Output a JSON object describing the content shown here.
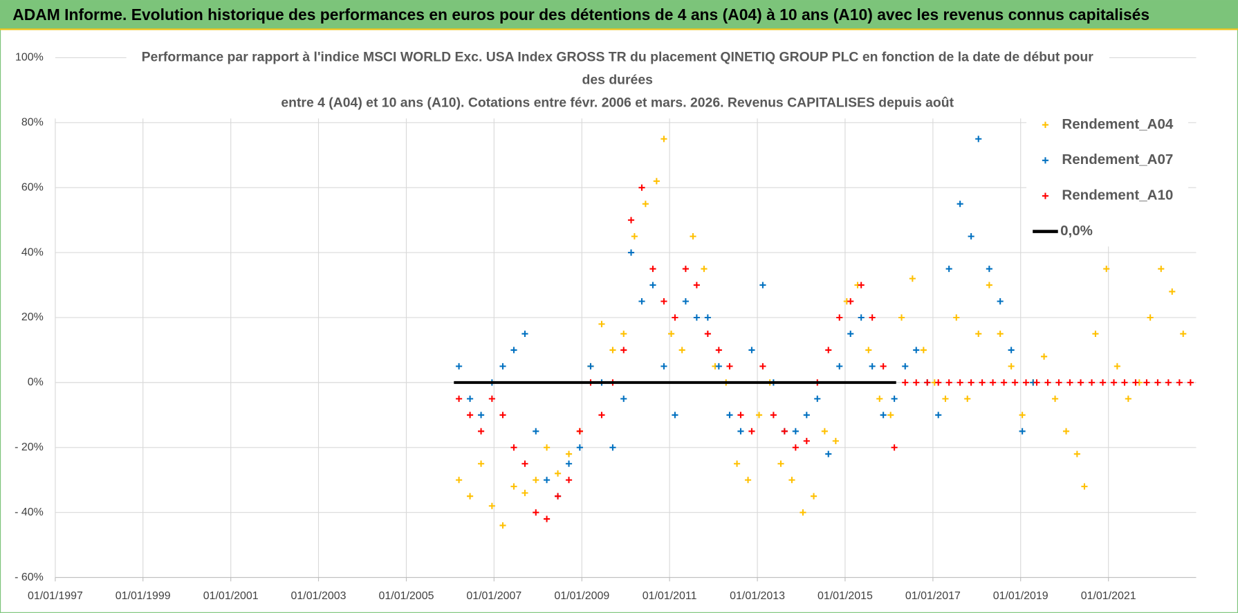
{
  "chart_data": {
    "type": "scatter",
    "title": "ADAM Informe. Evolution historique des performances en euros pour des détentions de 4 ans (A04) à 10 ans (A10) avec les revenus connus capitalisés",
    "subtitle": [
      "Performance par rapport à l'indice MSCI WORLD Exc. USA Index GROSS TR  du placement QINETIQ GROUP PLC en fonction de la date de début pour",
      "des durées",
      "entre 4 (A04) et 10 ans (A10). Cotations entre févr. 2006 et mars. 2026. Revenus CAPITALISES depuis août"
    ],
    "xlim": [
      "1997-01-01",
      "2023-01-01"
    ],
    "xticks": [
      {
        "value": "1997-01-01",
        "label": "01/01/1997"
      },
      {
        "value": "1999-01-01",
        "label": "01/01/1999"
      },
      {
        "value": "2001-01-01",
        "label": "01/01/2001"
      },
      {
        "value": "2003-01-01",
        "label": "01/01/2003"
      },
      {
        "value": "2005-01-01",
        "label": "01/01/2005"
      },
      {
        "value": "2007-01-01",
        "label": "01/01/2007"
      },
      {
        "value": "2009-01-01",
        "label": "01/01/2009"
      },
      {
        "value": "2011-01-01",
        "label": "01/01/2011"
      },
      {
        "value": "2013-01-01",
        "label": "01/01/2013"
      },
      {
        "value": "2015-01-01",
        "label": "01/01/2015"
      },
      {
        "value": "2017-01-01",
        "label": "01/01/2017"
      },
      {
        "value": "2019-01-01",
        "label": "01/01/2019"
      },
      {
        "value": "2021-01-01",
        "label": "01/01/2021"
      }
    ],
    "ylim": [
      -60,
      100
    ],
    "yticks": [
      {
        "value": -60,
        "label": "- 60%"
      },
      {
        "value": -40,
        "label": "- 40%"
      },
      {
        "value": -20,
        "label": "- 20%"
      },
      {
        "value": 0,
        "label": "0%"
      },
      {
        "value": 20,
        "label": "20%"
      },
      {
        "value": 40,
        "label": "40%"
      },
      {
        "value": 60,
        "label": "60%"
      },
      {
        "value": 80,
        "label": "80%"
      },
      {
        "value": 100,
        "label": "100%"
      }
    ],
    "grid": true,
    "legend": "top-right",
    "series": [
      {
        "name": "Rendement_A04",
        "color": "#ffc000",
        "marker": "+",
        "x": [
          "2006-03-15",
          "2006-06-15",
          "2006-09-15",
          "2006-12-15",
          "2007-03-15",
          "2007-06-15",
          "2007-09-15",
          "2007-12-15",
          "2008-03-15",
          "2008-06-15",
          "2008-09-15",
          "2008-12-15",
          "2009-03-15",
          "2009-06-15",
          "2009-09-15",
          "2009-12-15",
          "2010-03-15",
          "2010-06-15",
          "2010-09-15",
          "2010-11-15",
          "2011-01-15",
          "2011-04-15",
          "2011-07-15",
          "2011-10-15",
          "2012-01-15",
          "2012-04-15",
          "2012-07-15",
          "2012-10-15",
          "2013-01-15",
          "2013-04-15",
          "2013-07-15",
          "2013-10-15",
          "2014-01-15",
          "2014-04-15",
          "2014-07-15",
          "2014-10-15",
          "2015-01-15",
          "2015-04-15",
          "2015-07-15",
          "2015-10-15",
          "2016-01-15",
          "2016-04-15",
          "2016-07-15",
          "2016-10-15",
          "2017-01-15",
          "2017-04-15",
          "2017-07-15",
          "2017-10-15",
          "2018-01-15",
          "2018-04-15",
          "2018-07-15",
          "2018-10-15",
          "2019-01-15",
          "2019-04-15",
          "2019-07-15",
          "2019-10-15",
          "2020-01-15",
          "2020-04-15",
          "2020-06-15",
          "2020-09-15",
          "2020-12-15",
          "2021-03-15",
          "2021-06-15",
          "2021-09-15",
          "2021-12-15",
          "2022-03-15",
          "2022-06-15",
          "2022-09-15"
        ],
        "values": [
          -30,
          -35,
          -25,
          -38,
          -44,
          -32,
          -34,
          -30,
          -20,
          -28,
          -22,
          -15,
          5,
          18,
          10,
          15,
          45,
          55,
          62,
          75,
          15,
          10,
          45,
          35,
          5,
          0,
          -25,
          -30,
          -10,
          0,
          -25,
          -30,
          -40,
          -35,
          -15,
          -18,
          25,
          30,
          10,
          -5,
          -10,
          20,
          32,
          10,
          0,
          -5,
          20,
          -5,
          15,
          30,
          15,
          5,
          -10,
          0,
          8,
          -5,
          -15,
          -22,
          -32,
          15,
          35,
          5,
          -5,
          0,
          20,
          35,
          28,
          15
        ]
      },
      {
        "name": "Rendement_A07",
        "color": "#0070c0",
        "marker": "+",
        "x": [
          "2006-03-15",
          "2006-06-15",
          "2006-09-15",
          "2006-12-15",
          "2007-03-15",
          "2007-06-15",
          "2007-09-15",
          "2007-12-15",
          "2008-03-15",
          "2008-06-15",
          "2008-09-15",
          "2008-12-15",
          "2009-03-15",
          "2009-06-15",
          "2009-09-15",
          "2009-12-15",
          "2010-02-15",
          "2010-05-15",
          "2010-08-15",
          "2010-11-15",
          "2011-02-15",
          "2011-05-15",
          "2011-08-15",
          "2011-11-15",
          "2012-02-15",
          "2012-05-15",
          "2012-08-15",
          "2012-11-15",
          "2013-02-15",
          "2013-05-15",
          "2013-08-15",
          "2013-11-15",
          "2014-02-15",
          "2014-05-15",
          "2014-08-15",
          "2014-11-15",
          "2015-02-15",
          "2015-05-15",
          "2015-08-15",
          "2015-11-15",
          "2016-02-15",
          "2016-05-15",
          "2016-08-15",
          "2016-11-15",
          "2017-02-15",
          "2017-05-15",
          "2017-08-15",
          "2017-11-15",
          "2018-01-15",
          "2018-04-15",
          "2018-07-15",
          "2018-10-15",
          "2019-01-15",
          "2019-04-15"
        ],
        "values": [
          5,
          -5,
          -10,
          0,
          5,
          10,
          15,
          -15,
          -30,
          -35,
          -25,
          -20,
          5,
          0,
          -20,
          -5,
          40,
          25,
          30,
          5,
          -10,
          25,
          20,
          20,
          5,
          -10,
          -15,
          10,
          30,
          0,
          -15,
          -15,
          -10,
          -5,
          -22,
          5,
          15,
          20,
          5,
          -10,
          -5,
          5,
          10,
          0,
          -10,
          35,
          55,
          45,
          75,
          35,
          25,
          10,
          -15,
          0
        ]
      },
      {
        "name": "Rendement_A10",
        "color": "#ff0000",
        "marker": "+",
        "x": [
          "2006-03-15",
          "2006-06-15",
          "2006-09-15",
          "2006-12-15",
          "2007-03-15",
          "2007-06-15",
          "2007-09-15",
          "2007-12-15",
          "2008-03-15",
          "2008-06-15",
          "2008-09-15",
          "2008-12-15",
          "2009-03-15",
          "2009-06-15",
          "2009-09-15",
          "2009-12-15",
          "2010-02-15",
          "2010-05-15",
          "2010-08-15",
          "2010-11-15",
          "2011-02-15",
          "2011-05-15",
          "2011-08-15",
          "2011-11-15",
          "2012-02-15",
          "2012-05-15",
          "2012-08-15",
          "2012-11-15",
          "2013-02-15",
          "2013-05-15",
          "2013-08-15",
          "2013-11-15",
          "2014-02-15",
          "2014-05-15",
          "2014-08-15",
          "2014-11-15",
          "2015-02-15",
          "2015-05-15",
          "2015-08-15",
          "2015-11-15",
          "2016-02-15",
          "2016-05-15",
          "2016-08-15",
          "2016-11-15",
          "2017-02-15",
          "2017-05-15",
          "2017-08-15",
          "2017-11-15",
          "2018-02-15",
          "2018-05-15",
          "2018-08-15",
          "2018-11-15",
          "2019-02-15",
          "2019-05-15",
          "2019-08-15",
          "2019-11-15",
          "2020-02-15",
          "2020-05-15",
          "2020-08-15",
          "2020-11-15",
          "2021-02-15",
          "2021-05-15",
          "2021-08-15",
          "2021-11-15",
          "2022-02-15",
          "2022-05-15",
          "2022-08-15",
          "2022-11-15"
        ],
        "values": [
          -5,
          -10,
          -15,
          -5,
          -10,
          -20,
          -25,
          -40,
          -42,
          -35,
          -30,
          -15,
          0,
          -10,
          0,
          10,
          50,
          60,
          35,
          25,
          20,
          35,
          30,
          15,
          10,
          5,
          -10,
          -15,
          5,
          -10,
          -15,
          -20,
          -18,
          0,
          10,
          20,
          25,
          30,
          20,
          5,
          -20,
          0,
          0,
          0,
          0,
          0,
          0,
          0,
          0,
          0,
          0,
          0,
          0,
          0,
          0,
          0,
          0,
          0,
          0,
          0,
          0,
          0,
          0,
          0,
          0,
          0,
          0,
          0
        ]
      },
      {
        "name": "0,0%",
        "color": "#000000",
        "marker": "line",
        "x": [
          "2006-02-01",
          "2016-03-01"
        ],
        "values": [
          0,
          0
        ]
      }
    ]
  }
}
